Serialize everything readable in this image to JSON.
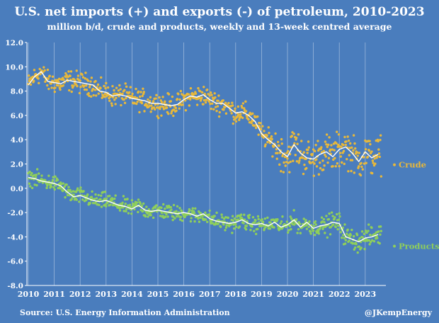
{
  "chart_data": {
    "type": "scatter",
    "title": "U.S. net imports (+) and exports (-) of petroleum, 2010-2023",
    "subtitle": "million b/d, crude and products, weekly and 13-week centred average",
    "xlabel": "",
    "ylabel": "",
    "xlim": [
      2010,
      2023.9
    ],
    "ylim": [
      -8.0,
      12.0
    ],
    "x_ticks": [
      "2010",
      "2011",
      "2012",
      "2013",
      "2014",
      "2015",
      "2016",
      "2017",
      "2018",
      "2019",
      "2020",
      "2021",
      "2022",
      "2023"
    ],
    "y_ticks": [
      "12.0",
      "10.0",
      "8.0",
      "6.0",
      "4.0",
      "2.0",
      "0.0",
      "-2.0",
      "-4.0",
      "-6.0",
      "-8.0"
    ],
    "grid": "vertical",
    "legend": "inline-right",
    "series": [
      {
        "name": "Crude",
        "color": "#e8b83a",
        "x": [
          2010.0,
          2010.25,
          2010.5,
          2010.75,
          2011.0,
          2011.25,
          2011.5,
          2011.75,
          2012.0,
          2012.25,
          2012.5,
          2012.75,
          2013.0,
          2013.25,
          2013.5,
          2013.75,
          2014.0,
          2014.25,
          2014.5,
          2014.75,
          2015.0,
          2015.25,
          2015.5,
          2015.75,
          2016.0,
          2016.25,
          2016.5,
          2016.75,
          2017.0,
          2017.25,
          2017.5,
          2017.75,
          2018.0,
          2018.25,
          2018.5,
          2018.75,
          2019.0,
          2019.25,
          2019.5,
          2019.75,
          2020.0,
          2020.25,
          2020.5,
          2020.75,
          2021.0,
          2021.25,
          2021.5,
          2021.75,
          2022.0,
          2022.25,
          2022.5,
          2022.75,
          2023.0,
          2023.25,
          2023.5
        ],
        "values": [
          8.5,
          9.2,
          9.6,
          8.8,
          8.7,
          8.6,
          8.9,
          8.8,
          8.7,
          8.6,
          8.5,
          8.0,
          7.9,
          7.6,
          7.7,
          7.6,
          7.4,
          7.3,
          7.2,
          7.0,
          7.0,
          6.9,
          6.8,
          6.9,
          7.3,
          7.6,
          7.5,
          7.7,
          7.3,
          7.0,
          7.0,
          6.6,
          6.2,
          6.3,
          6.0,
          5.5,
          4.5,
          4.0,
          3.6,
          3.0,
          2.6,
          3.6,
          2.9,
          2.5,
          2.4,
          2.8,
          3.0,
          2.6,
          3.2,
          3.4,
          2.9,
          2.2,
          3.0,
          2.5,
          2.8
        ]
      },
      {
        "name": "Products",
        "color": "#8fcf5a",
        "x": [
          2010.0,
          2010.25,
          2010.5,
          2010.75,
          2011.0,
          2011.25,
          2011.5,
          2011.75,
          2012.0,
          2012.25,
          2012.5,
          2012.75,
          2013.0,
          2013.25,
          2013.5,
          2013.75,
          2014.0,
          2014.25,
          2014.5,
          2014.75,
          2015.0,
          2015.25,
          2015.5,
          2015.75,
          2016.0,
          2016.25,
          2016.5,
          2016.75,
          2017.0,
          2017.25,
          2017.5,
          2017.75,
          2018.0,
          2018.25,
          2018.5,
          2018.75,
          2019.0,
          2019.25,
          2019.5,
          2019.75,
          2020.0,
          2020.25,
          2020.5,
          2020.75,
          2021.0,
          2021.25,
          2021.5,
          2021.75,
          2022.0,
          2022.25,
          2022.5,
          2022.75,
          2023.0,
          2023.25,
          2023.5
        ],
        "values": [
          0.9,
          0.8,
          0.6,
          0.5,
          0.4,
          0.2,
          -0.3,
          -0.7,
          -0.6,
          -0.8,
          -1.0,
          -1.1,
          -1.0,
          -1.2,
          -1.4,
          -1.5,
          -1.7,
          -1.4,
          -1.8,
          -1.9,
          -1.8,
          -1.9,
          -2.0,
          -2.1,
          -2.0,
          -2.1,
          -2.3,
          -2.1,
          -2.5,
          -2.7,
          -2.8,
          -2.9,
          -2.8,
          -2.6,
          -2.9,
          -3.0,
          -2.9,
          -3.1,
          -2.8,
          -3.2,
          -3.0,
          -2.6,
          -3.2,
          -2.8,
          -3.3,
          -3.1,
          -3.0,
          -2.8,
          -2.9,
          -4.0,
          -4.2,
          -4.4,
          -4.1,
          -4.0,
          -3.8
        ]
      }
    ],
    "source": "Source: U.S. Energy Information Administration",
    "credit": "@JKempEnergy"
  }
}
